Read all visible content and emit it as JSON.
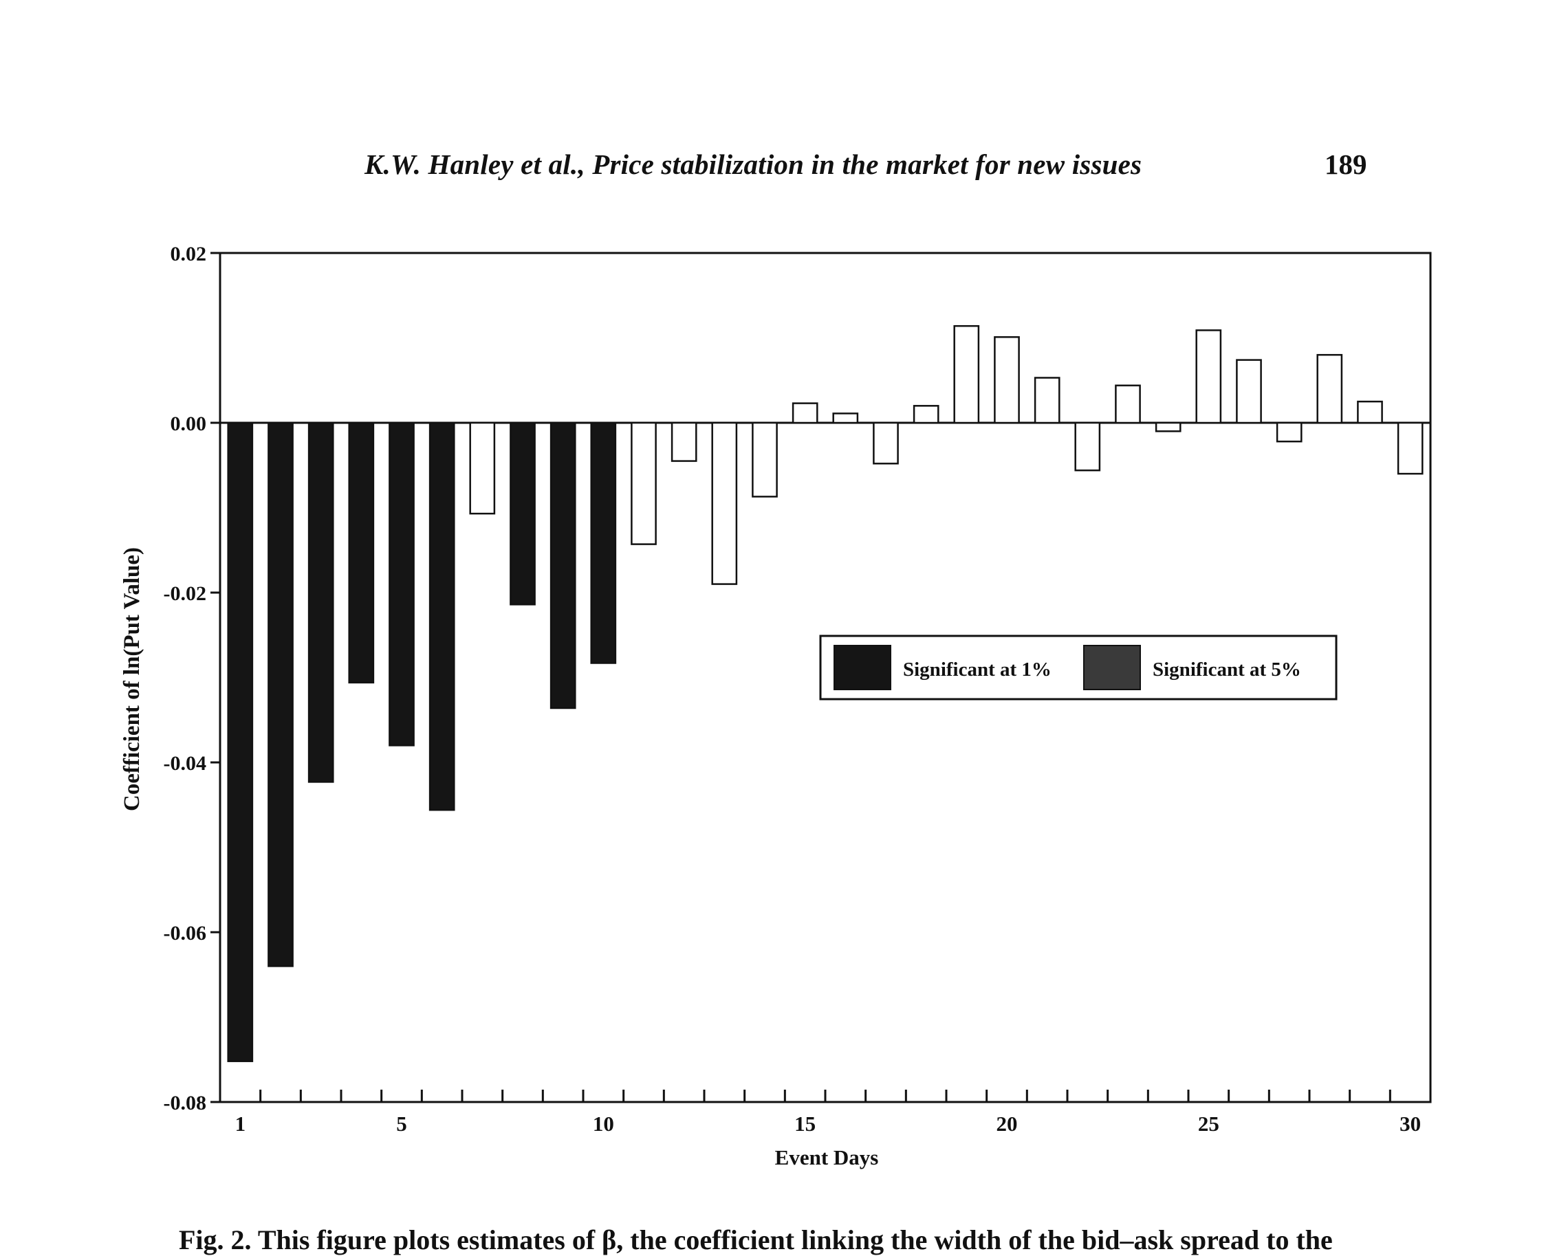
{
  "page": {
    "running_head": "K.W. Hanley et al., Price stabilization in the market for new issues",
    "page_number": "189",
    "caption_fragment": "Fig. 2. This figure plots estimates of β, the coefficient linking the width of the bid–ask spread to the"
  },
  "colors": {
    "significant_1": "#151515",
    "significant_5": "#3a3a3a",
    "not_significant": "#ffffff",
    "stroke": "#111111"
  },
  "chart_data": {
    "type": "bar",
    "title": "",
    "xlabel": "Event Days",
    "ylabel": "Coefficient of ln(Put Value)",
    "ylim": [
      -0.08,
      0.02
    ],
    "yticks": [
      0.02,
      0.0,
      -0.02,
      -0.04,
      -0.06,
      -0.08
    ],
    "ytick_labels": [
      "0.02",
      "0.00",
      "-0.02",
      "-0.04",
      "-0.06",
      "-0.08"
    ],
    "xtick_labels": [
      {
        "day": 1,
        "label": "1"
      },
      {
        "day": 5,
        "label": "5"
      },
      {
        "day": 10,
        "label": "10"
      },
      {
        "day": 15,
        "label": "15"
      },
      {
        "day": 20,
        "label": "20"
      },
      {
        "day": 25,
        "label": "25"
      },
      {
        "day": 30,
        "label": "30"
      }
    ],
    "categories": [
      1,
      2,
      3,
      4,
      5,
      6,
      7,
      8,
      9,
      10,
      11,
      12,
      13,
      14,
      15,
      16,
      17,
      18,
      19,
      20,
      21,
      22,
      23,
      24,
      25,
      26,
      27,
      28,
      29,
      30
    ],
    "values": [
      -0.0752,
      -0.064,
      -0.0423,
      -0.0306,
      -0.038,
      -0.0456,
      -0.0107,
      -0.0214,
      -0.0336,
      -0.0283,
      -0.0143,
      -0.0045,
      -0.019,
      -0.0087,
      0.0023,
      0.0011,
      -0.0048,
      0.002,
      0.0114,
      0.0101,
      0.0053,
      -0.0056,
      0.0044,
      -0.001,
      0.0109,
      0.0074,
      -0.0022,
      0.008,
      0.0025,
      -0.006
    ],
    "significance": [
      "1%",
      "1%",
      "1%",
      "1%",
      "1%",
      "1%",
      "none",
      "1%",
      "1%",
      "1%",
      "none",
      "none",
      "none",
      "none",
      "none",
      "none",
      "none",
      "none",
      "none",
      "none",
      "none",
      "none",
      "none",
      "none",
      "none",
      "none",
      "none",
      "none",
      "none",
      "none"
    ],
    "legend": {
      "position": "center-right",
      "entries": [
        {
          "key": "1%",
          "label": "Significant at 1%"
        },
        {
          "key": "5%",
          "label": "Significant at 5%"
        }
      ]
    }
  }
}
